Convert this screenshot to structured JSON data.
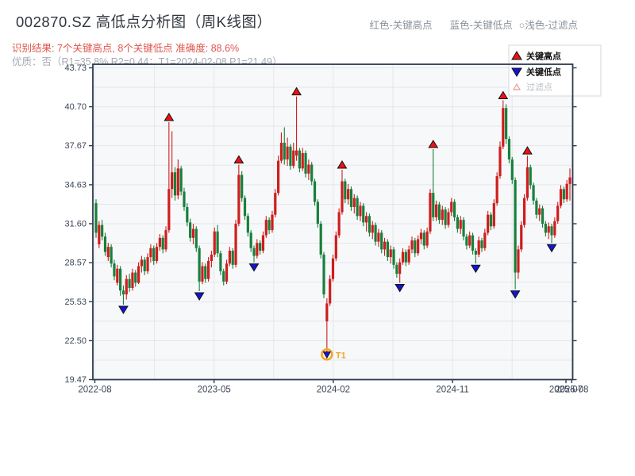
{
  "header": {
    "title": "002870.SZ 高低点分析图（周K线图）",
    "recognition_line": "识别结果: 7个关键高点, 8个关键低点  准确度: 88.6%",
    "quality_line": "优质：否（R1=35.8%  R2=0.44；T1=2024-02-08 P1=21.49）",
    "hint_red": "红色-关键高点",
    "hint_blue": "蓝色-关键低点",
    "hint_light": "○浅色-过滤点"
  },
  "legend": {
    "items": [
      {
        "label": "关键高点",
        "marker": "triangle-up",
        "color": "#ee1111",
        "edge": "#111111",
        "text_color": "#101010",
        "bold": true
      },
      {
        "label": "关键低点",
        "marker": "triangle-down",
        "color": "#1414d2",
        "edge": "#111111",
        "text_color": "#101010",
        "bold": true
      },
      {
        "label": "过滤点",
        "marker": "triangle-open",
        "color": "#fdf4f3",
        "edge": "#e5a19b",
        "text_color": "#b9bfc6",
        "bold": false
      }
    ]
  },
  "chart_data": {
    "type": "candlestick",
    "symbol": "002870.SZ",
    "period": "weekly",
    "title": "002870.SZ 高低点分析图（周K线图）",
    "ylim": [
      19.47,
      43.73
    ],
    "y_axis": {
      "tick_values": [
        43.73,
        40.7,
        37.67,
        34.63,
        31.6,
        28.57,
        25.53,
        22.5,
        19.47
      ],
      "tick_labels": [
        "43.73",
        "40.70",
        "37.67",
        "34.63",
        "31.60",
        "28.57",
        "25.53",
        "22.50",
        "19.47"
      ]
    },
    "x_axis": {
      "ticks": [
        {
          "label": "2022-08",
          "px": 119.5,
          "major": true
        },
        {
          "label": "2023-05",
          "px": 269.7,
          "major": true
        },
        {
          "label": "2024-02",
          "px": 419.9,
          "major": true
        },
        {
          "label": "2024-11",
          "px": 570.1,
          "major": true
        },
        {
          "label": "2025-07",
          "px": 713.0,
          "major": false
        },
        {
          "label": "2025-08",
          "px": 720.3,
          "major": true
        }
      ]
    },
    "candles": [
      [
        33.2,
        33.5,
        30.5,
        30.9
      ],
      [
        30.0,
        31.8,
        29.7,
        31.5
      ],
      [
        31.5,
        31.9,
        30.3,
        30.6
      ],
      [
        30.6,
        30.9,
        29.1,
        29.4
      ],
      [
        29.0,
        30.1,
        28.7,
        29.8
      ],
      [
        29.8,
        30.0,
        28.2,
        28.5
      ],
      [
        28.5,
        28.8,
        27.2,
        27.5
      ],
      [
        27.0,
        28.4,
        26.8,
        28.1
      ],
      [
        28.1,
        28.3,
        26.0,
        26.4
      ],
      [
        26.4,
        26.8,
        25.3,
        26.1
      ],
      [
        26.1,
        27.6,
        25.7,
        27.3
      ],
      [
        27.3,
        27.7,
        26.3,
        26.6
      ],
      [
        26.6,
        28.1,
        26.4,
        27.8
      ],
      [
        27.8,
        28.0,
        26.7,
        27.0
      ],
      [
        27.0,
        28.6,
        26.9,
        28.3
      ],
      [
        28.3,
        29.1,
        27.8,
        28.8
      ],
      [
        28.8,
        29.0,
        27.6,
        27.9
      ],
      [
        27.9,
        29.3,
        27.7,
        29.0
      ],
      [
        29.0,
        30.0,
        28.6,
        29.7
      ],
      [
        29.7,
        29.9,
        28.4,
        28.7
      ],
      [
        28.7,
        30.1,
        28.5,
        29.8
      ],
      [
        29.8,
        30.8,
        29.5,
        30.5
      ],
      [
        30.5,
        30.7,
        29.3,
        29.6
      ],
      [
        29.6,
        31.4,
        29.4,
        31.1
      ],
      [
        31.1,
        39.5,
        30.9,
        34.3
      ],
      [
        34.3,
        38.8,
        33.6,
        35.6
      ],
      [
        35.6,
        36.0,
        33.4,
        33.8
      ],
      [
        33.8,
        36.6,
        33.5,
        35.9
      ],
      [
        35.9,
        36.1,
        33.8,
        34.1
      ],
      [
        34.1,
        34.4,
        32.6,
        32.9
      ],
      [
        32.9,
        33.2,
        31.4,
        31.7
      ],
      [
        31.7,
        32.0,
        30.2,
        30.5
      ],
      [
        30.5,
        31.6,
        30.0,
        31.2
      ],
      [
        31.2,
        31.4,
        29.4,
        29.7
      ],
      [
        29.7,
        29.9,
        26.35,
        27.1
      ],
      [
        27.1,
        28.6,
        26.9,
        28.3
      ],
      [
        28.3,
        28.5,
        27.0,
        27.3
      ],
      [
        27.3,
        29.0,
        27.1,
        28.7
      ],
      [
        28.7,
        29.5,
        28.2,
        29.2
      ],
      [
        29.2,
        31.3,
        29.0,
        31.0
      ],
      [
        31.0,
        31.5,
        29.0,
        29.3
      ],
      [
        29.3,
        29.5,
        27.6,
        27.9
      ],
      [
        27.9,
        28.1,
        26.8,
        27.1
      ],
      [
        27.1,
        28.8,
        26.9,
        28.5
      ],
      [
        28.5,
        29.8,
        28.3,
        29.5
      ],
      [
        29.5,
        29.7,
        28.1,
        28.4
      ],
      [
        28.4,
        31.9,
        28.2,
        31.6
      ],
      [
        31.6,
        36.2,
        31.4,
        35.4
      ],
      [
        35.4,
        35.7,
        33.3,
        33.6
      ],
      [
        33.6,
        33.8,
        31.9,
        32.2
      ],
      [
        32.2,
        32.4,
        30.6,
        30.9
      ],
      [
        30.9,
        31.1,
        29.4,
        29.7
      ],
      [
        29.7,
        29.9,
        28.6,
        29.1
      ],
      [
        29.1,
        30.4,
        28.9,
        30.1
      ],
      [
        30.1,
        30.3,
        29.2,
        29.5
      ],
      [
        29.5,
        31.0,
        29.3,
        30.7
      ],
      [
        30.7,
        32.2,
        30.5,
        31.9
      ],
      [
        31.9,
        32.1,
        30.8,
        31.1
      ],
      [
        31.1,
        32.6,
        30.9,
        32.3
      ],
      [
        32.3,
        34.3,
        32.1,
        34.0
      ],
      [
        34.0,
        36.9,
        33.8,
        36.5
      ],
      [
        36.5,
        38.7,
        36.3,
        37.9
      ],
      [
        37.9,
        39.1,
        36.2,
        36.6
      ],
      [
        36.6,
        38.3,
        36.1,
        37.6
      ],
      [
        37.6,
        37.8,
        35.8,
        36.1
      ],
      [
        36.1,
        37.9,
        35.9,
        37.3
      ],
      [
        36.9,
        41.5,
        36.5,
        37.3
      ],
      [
        37.3,
        37.5,
        35.6,
        35.9
      ],
      [
        35.9,
        37.5,
        35.7,
        37.1
      ],
      [
        37.1,
        37.3,
        35.2,
        35.5
      ],
      [
        35.5,
        36.6,
        35.0,
        36.2
      ],
      [
        36.2,
        36.4,
        34.6,
        34.9
      ],
      [
        34.9,
        35.1,
        33.0,
        33.3
      ],
      [
        33.3,
        33.5,
        31.3,
        31.6
      ],
      [
        31.6,
        31.8,
        28.9,
        29.2
      ],
      [
        29.2,
        29.4,
        25.8,
        26.1
      ],
      [
        24.0,
        25.8,
        21.49,
        25.4
      ],
      [
        25.4,
        27.6,
        25.2,
        27.3
      ],
      [
        27.3,
        29.2,
        27.1,
        28.9
      ],
      [
        28.9,
        31.0,
        28.7,
        30.7
      ],
      [
        30.7,
        32.8,
        30.5,
        32.5
      ],
      [
        32.5,
        35.8,
        32.3,
        34.9
      ],
      [
        34.9,
        35.1,
        33.2,
        33.5
      ],
      [
        33.5,
        34.7,
        33.1,
        34.3
      ],
      [
        34.3,
        34.5,
        32.6,
        32.9
      ],
      [
        32.9,
        33.9,
        32.4,
        33.6
      ],
      [
        33.6,
        33.8,
        31.9,
        32.2
      ],
      [
        32.2,
        33.3,
        31.8,
        33.0
      ],
      [
        33.0,
        33.2,
        31.4,
        31.7
      ],
      [
        31.7,
        32.5,
        31.0,
        32.2
      ],
      [
        32.2,
        32.4,
        30.6,
        30.9
      ],
      [
        30.9,
        31.8,
        30.4,
        31.5
      ],
      [
        31.5,
        31.7,
        29.9,
        30.2
      ],
      [
        30.2,
        31.2,
        29.8,
        30.9
      ],
      [
        30.9,
        31.1,
        29.3,
        29.6
      ],
      [
        29.6,
        30.5,
        29.1,
        30.2
      ],
      [
        30.2,
        30.4,
        28.7,
        29.0
      ],
      [
        29.0,
        29.9,
        28.5,
        29.6
      ],
      [
        29.6,
        29.8,
        28.1,
        28.4
      ],
      [
        28.4,
        28.6,
        27.4,
        27.7
      ],
      [
        27.7,
        28.9,
        27.0,
        28.6
      ],
      [
        28.6,
        29.7,
        28.4,
        29.4
      ],
      [
        29.4,
        29.6,
        28.3,
        28.6
      ],
      [
        28.6,
        29.9,
        28.4,
        29.6
      ],
      [
        29.6,
        30.6,
        29.3,
        30.3
      ],
      [
        30.3,
        30.5,
        29.0,
        29.3
      ],
      [
        29.3,
        30.7,
        29.1,
        30.4
      ],
      [
        30.4,
        31.2,
        30.0,
        30.9
      ],
      [
        30.9,
        31.1,
        29.6,
        29.9
      ],
      [
        29.9,
        31.3,
        29.7,
        31.0
      ],
      [
        31.0,
        34.3,
        30.8,
        34.0
      ],
      [
        34.0,
        37.4,
        31.8,
        32.1
      ],
      [
        32.1,
        33.4,
        31.8,
        33.1
      ],
      [
        33.1,
        33.3,
        31.6,
        31.9
      ],
      [
        31.9,
        33.0,
        31.5,
        32.7
      ],
      [
        32.7,
        32.9,
        31.2,
        31.5
      ],
      [
        31.5,
        32.8,
        31.3,
        32.5
      ],
      [
        32.5,
        33.6,
        32.2,
        33.3
      ],
      [
        33.3,
        33.5,
        31.8,
        32.1
      ],
      [
        32.1,
        32.3,
        30.9,
        31.2
      ],
      [
        31.2,
        32.2,
        30.8,
        31.9
      ],
      [
        31.9,
        32.1,
        30.3,
        30.6
      ],
      [
        30.6,
        30.8,
        29.6,
        29.9
      ],
      [
        29.9,
        31.0,
        29.7,
        30.7
      ],
      [
        30.7,
        30.9,
        29.2,
        29.5
      ],
      [
        29.5,
        29.7,
        28.5,
        29.2
      ],
      [
        29.2,
        30.6,
        29.0,
        30.3
      ],
      [
        30.3,
        30.5,
        29.4,
        29.7
      ],
      [
        29.7,
        31.2,
        29.5,
        30.9
      ],
      [
        30.9,
        32.6,
        30.7,
        32.3
      ],
      [
        32.3,
        32.5,
        31.1,
        31.4
      ],
      [
        31.4,
        33.5,
        31.2,
        33.2
      ],
      [
        33.2,
        35.6,
        33.0,
        35.3
      ],
      [
        35.3,
        38.0,
        35.1,
        37.6
      ],
      [
        37.6,
        41.2,
        37.4,
        40.6
      ],
      [
        40.6,
        40.9,
        37.8,
        38.2
      ],
      [
        38.2,
        38.4,
        36.3,
        36.6
      ],
      [
        36.6,
        36.8,
        34.7,
        35.0
      ],
      [
        35.0,
        35.2,
        26.5,
        27.8
      ],
      [
        27.8,
        29.9,
        27.3,
        29.6
      ],
      [
        29.6,
        31.8,
        29.4,
        31.5
      ],
      [
        31.5,
        33.9,
        31.3,
        33.6
      ],
      [
        33.6,
        36.9,
        33.4,
        36.0
      ],
      [
        36.0,
        36.2,
        34.3,
        34.6
      ],
      [
        34.6,
        34.8,
        33.1,
        33.4
      ],
      [
        33.4,
        33.6,
        32.0,
        32.3
      ],
      [
        32.3,
        33.1,
        31.8,
        32.8
      ],
      [
        32.8,
        33.0,
        31.3,
        31.6
      ],
      [
        31.6,
        31.8,
        30.6,
        30.9
      ],
      [
        30.9,
        31.7,
        30.4,
        31.4
      ],
      [
        31.4,
        31.6,
        30.1,
        30.7
      ],
      [
        30.7,
        32.1,
        30.5,
        31.8
      ],
      [
        31.8,
        33.3,
        31.6,
        33.0
      ],
      [
        33.0,
        34.6,
        32.8,
        34.3
      ],
      [
        34.3,
        34.5,
        33.2,
        33.5
      ],
      [
        33.5,
        35.0,
        33.3,
        34.7
      ],
      [
        34.7,
        35.9,
        33.4,
        35.2
      ]
    ],
    "key_highs": [
      {
        "index": 24,
        "price": 39.5
      },
      {
        "index": 47,
        "price": 36.2
      },
      {
        "index": 66,
        "price": 41.5
      },
      {
        "index": 81,
        "price": 35.8
      },
      {
        "index": 111,
        "price": 37.4
      },
      {
        "index": 134,
        "price": 41.2
      },
      {
        "index": 142,
        "price": 36.9
      }
    ],
    "key_lows": [
      {
        "index": 9,
        "price": 25.3
      },
      {
        "index": 34,
        "price": 26.35
      },
      {
        "index": 52,
        "price": 28.6
      },
      {
        "index": 76,
        "price": 21.49,
        "t1": true
      },
      {
        "index": 100,
        "price": 27.0
      },
      {
        "index": 125,
        "price": 28.5
      },
      {
        "index": 138,
        "price": 26.5
      },
      {
        "index": 150,
        "price": 30.1
      }
    ],
    "t1_annotation": {
      "label": "T1",
      "index": 76,
      "price": 21.49,
      "color": "#f5a623"
    },
    "colors": {
      "up": "#cf1d1d",
      "down": "#17803c",
      "key_high": "#ee1111",
      "key_low": "#1414d2",
      "marker_edge": "#111111",
      "t1": "#f5a623",
      "grid": "#e4e6e9",
      "frame": "#2d3a4e",
      "plot_bg": "#f7f8fa",
      "tick_text": "#3a4556",
      "legend_border": "#d4d7da",
      "legend_bg": "#ffffff"
    }
  }
}
